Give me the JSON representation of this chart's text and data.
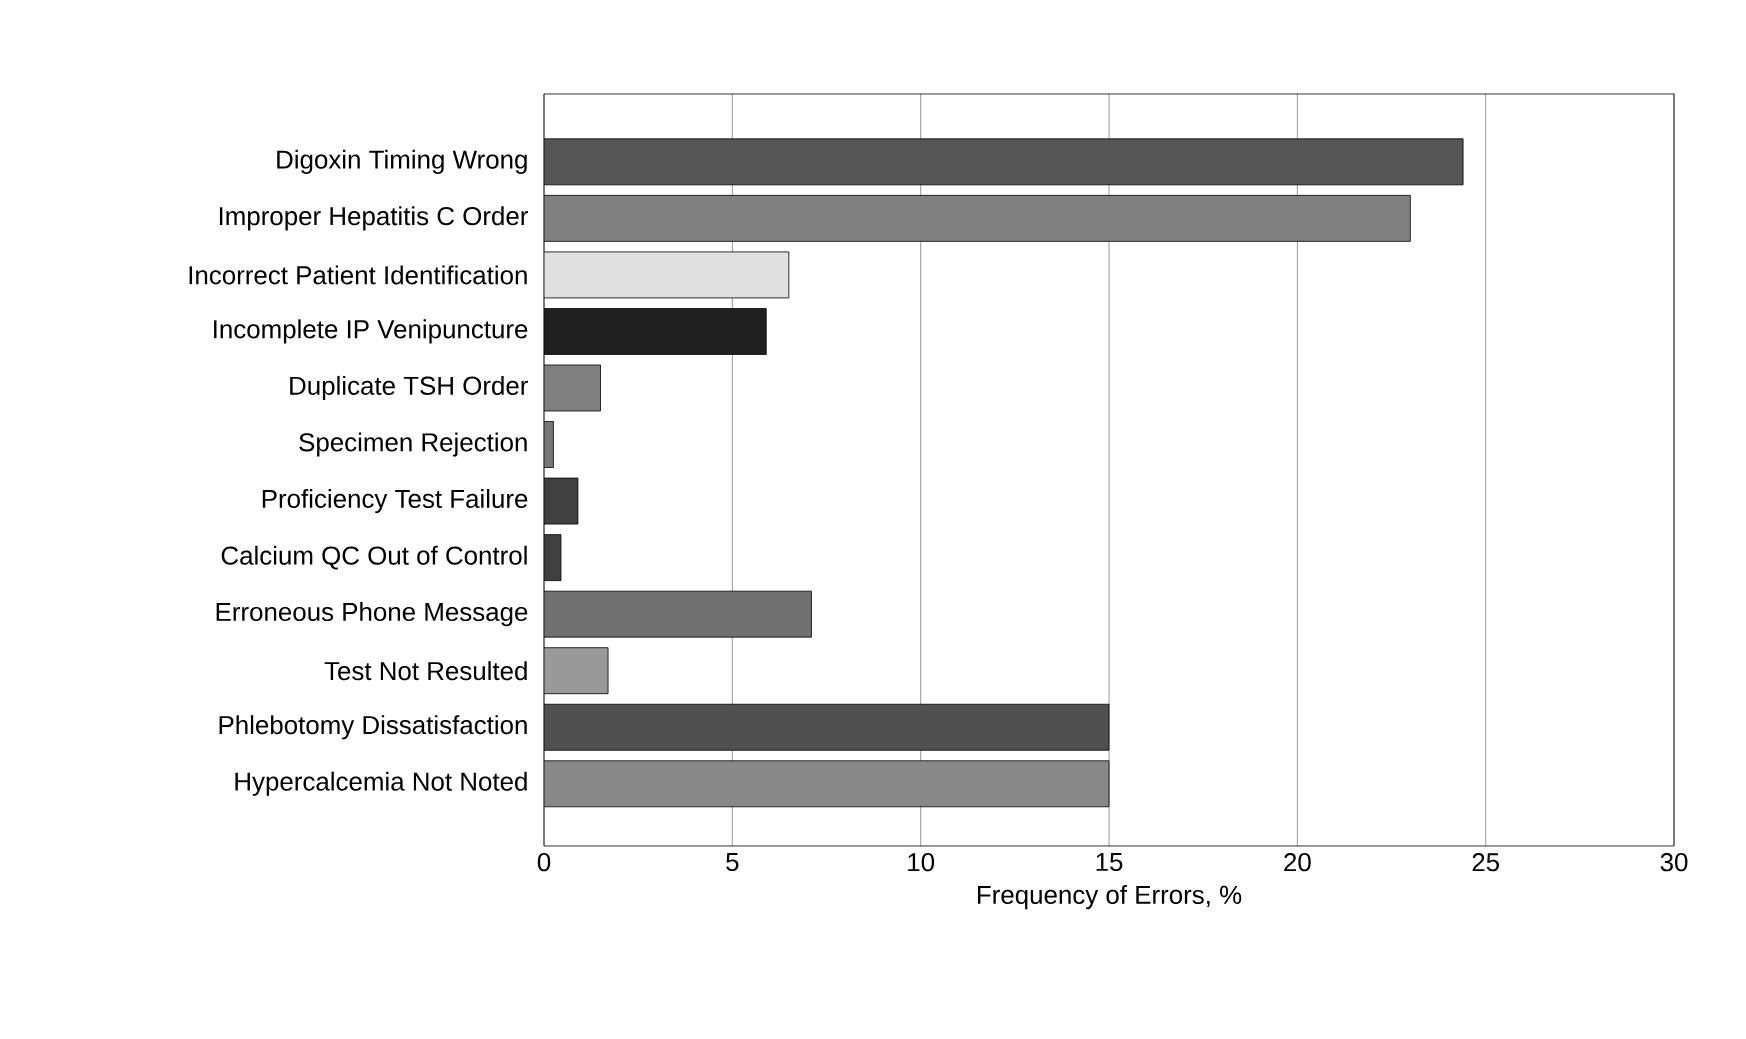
{
  "chart_data": {
    "type": "bar",
    "orientation": "horizontal",
    "xlabel": "Frequency of Errors, %",
    "categories": [
      "Digoxin Timing Wrong",
      "Improper Hepatitis C Order",
      "Incorrect Patient Identification",
      "Incomplete IP Venipuncture",
      "Duplicate TSH Order",
      "Specimen Rejection",
      "Proficiency Test Failure",
      "Calcium QC Out of Control",
      "Erroneous Phone Message",
      "Test Not Resulted",
      "Phlebotomy Dissatisfaction",
      "Hypercalcemia Not Noted"
    ],
    "values": [
      24.4,
      23.0,
      6.5,
      5.9,
      1.5,
      0.25,
      0.9,
      0.45,
      7.1,
      1.7,
      15.0,
      15.0
    ],
    "colors": [
      "#555555",
      "#808080",
      "#e0e0e0",
      "#202020",
      "#808080",
      "#777777",
      "#404040",
      "#404040",
      "#707070",
      "#999999",
      "#505050",
      "#888888"
    ],
    "xlim": [
      0,
      30
    ],
    "xticks": [
      0,
      5,
      10,
      15,
      20,
      25,
      30
    ],
    "grid": "x"
  }
}
